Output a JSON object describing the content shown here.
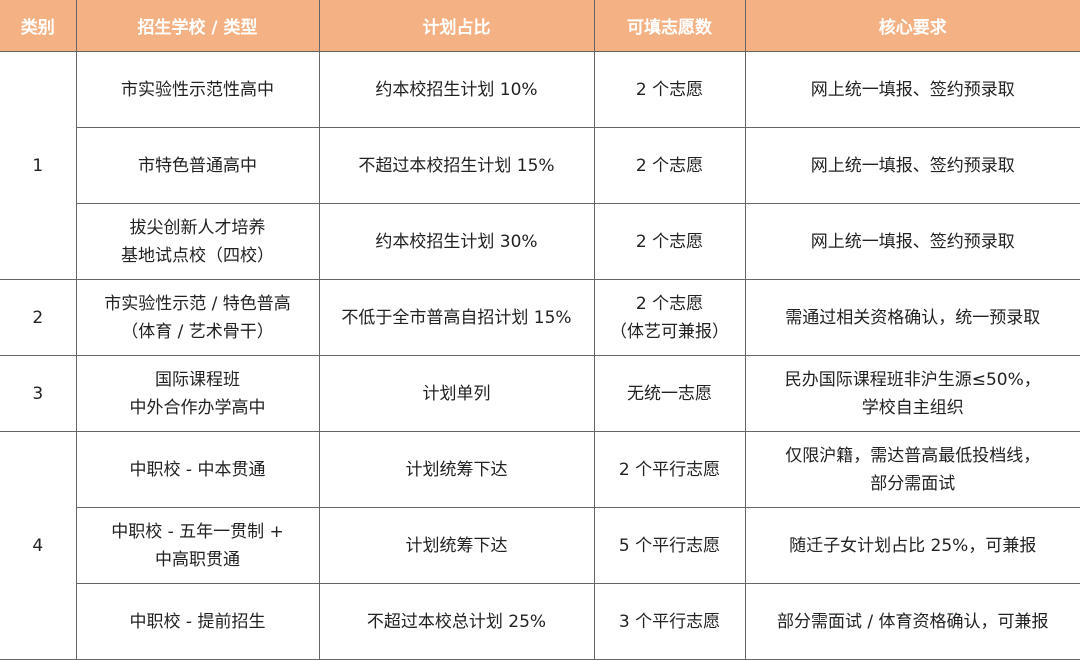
{
  "headers": [
    "类别",
    "招生学校 / 类型",
    "计划占比",
    "可填志愿数",
    "核心要求"
  ],
  "categories": [
    "1",
    "2",
    "3",
    "4"
  ],
  "rows": [
    {
      "school": [
        "市实验性示范性高中"
      ],
      "ratio": [
        "约本校招生计划 10%"
      ],
      "choices": [
        "2 个志愿"
      ],
      "req": [
        "网上统一填报、签约预录取"
      ]
    },
    {
      "school": [
        "市特色普通高中"
      ],
      "ratio": [
        "不超过本校招生计划 15%"
      ],
      "choices": [
        "2 个志愿"
      ],
      "req": [
        "网上统一填报、签约预录取"
      ]
    },
    {
      "school": [
        "拔尖创新人才培养",
        "基地试点校（四校）"
      ],
      "ratio": [
        "约本校招生计划 30%"
      ],
      "choices": [
        "2 个志愿"
      ],
      "req": [
        "网上统一填报、签约预录取"
      ]
    },
    {
      "school": [
        "市实验性示范 / 特色普高",
        "（体育 / 艺术骨干）"
      ],
      "ratio": [
        "不低于全市普高自招计划 15%"
      ],
      "choices": [
        "2 个志愿",
        "（体艺可兼报）"
      ],
      "req": [
        "需通过相关资格确认，统一预录取"
      ]
    },
    {
      "school": [
        "国际课程班",
        "中外合作办学高中"
      ],
      "ratio": [
        "计划单列"
      ],
      "choices": [
        "无统一志愿"
      ],
      "req": [
        "民办国际课程班非沪生源≤50%，",
        "学校自主组织"
      ]
    },
    {
      "school": [
        "中职校 - 中本贯通"
      ],
      "ratio": [
        "计划统筹下达"
      ],
      "choices": [
        "2 个平行志愿"
      ],
      "req": [
        "仅限沪籍，需达普高最低投档线，",
        "部分需面试"
      ]
    },
    {
      "school": [
        "中职校 - 五年一贯制 +",
        "中高职贯通"
      ],
      "ratio": [
        "计划统筹下达"
      ],
      "choices": [
        "5 个平行志愿"
      ],
      "req": [
        "随迁子女计划占比 25%，可兼报"
      ]
    },
    {
      "school": [
        "中职校 - 提前招生"
      ],
      "ratio": [
        "不超过本校总计划 25%"
      ],
      "choices": [
        "3 个平行志愿"
      ],
      "req": [
        "部分需面试 / 体育资格确认，可兼报"
      ]
    }
  ]
}
